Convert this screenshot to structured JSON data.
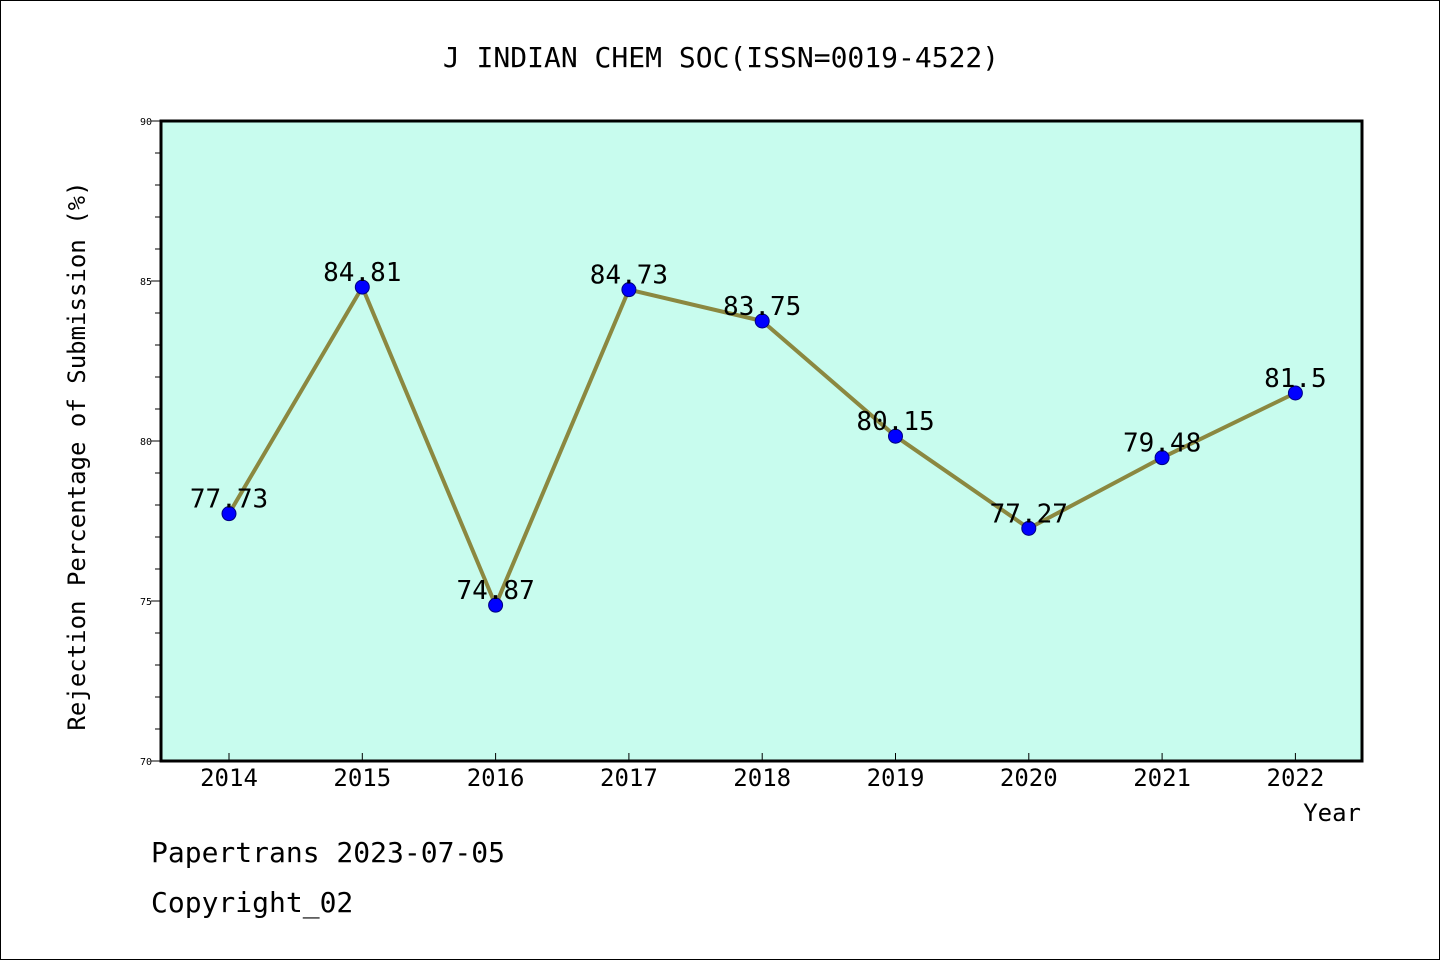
{
  "chart_data": {
    "type": "line",
    "title": "J INDIAN CHEM SOC(ISSN=0019-4522)",
    "xlabel": "Year",
    "ylabel": "Rejection Percentage of Submission (%)",
    "categories": [
      "2014",
      "2015",
      "2016",
      "2017",
      "2018",
      "2019",
      "2020",
      "2021",
      "2022"
    ],
    "series": [
      {
        "values": [
          77.73,
          84.81,
          74.87,
          84.73,
          83.75,
          80.15,
          77.27,
          79.48,
          81.5
        ],
        "labels": [
          "77.73",
          "84.81",
          "74.87",
          "84.73",
          "83.75",
          "80.15",
          "77.27",
          "79.48",
          "81.5"
        ]
      }
    ],
    "ylim": [
      70,
      90
    ],
    "yticks": [
      "70",
      "75",
      "80",
      "85",
      "90"
    ],
    "grid": false,
    "colors": {
      "plot_background": "#c8fcee",
      "line": "#8b8840",
      "marker": "#0000ff"
    }
  },
  "footer": {
    "line1": "Papertrans 2023-07-05",
    "line2": "Copyright_02"
  }
}
